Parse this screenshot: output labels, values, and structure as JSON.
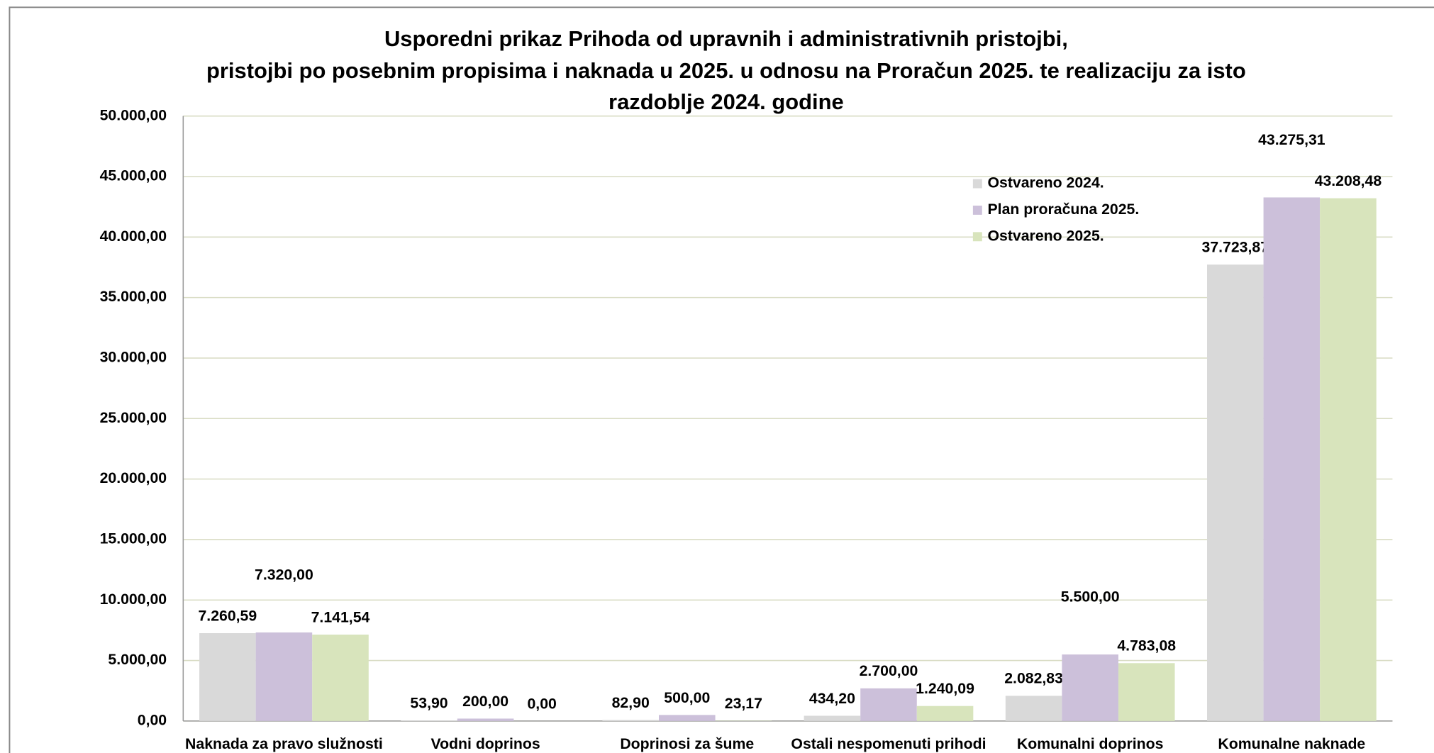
{
  "chart_data": {
    "type": "bar",
    "title": [
      "Usporedni prikaz Prihoda od upravnih i administrativnih pristojbi,",
      "pristojbi po posebnim propisima i naknada u 2025. u odnosu na Proračun 2025. te realizaciju za isto",
      "razdoblje 2024. godine"
    ],
    "categories": [
      "Naknada za pravo služnosti",
      "Vodni doprinos",
      "Doprinosi za šume",
      "Ostali nespomenuti prihodi",
      "Komunalni doprinos",
      "Komunalne naknade"
    ],
    "series": [
      {
        "name": "Ostvareno 2024.",
        "color": "#d9d9d9",
        "values": [
          7260.59,
          53.9,
          82.9,
          434.2,
          2082.83,
          37723.87
        ],
        "value_labels": [
          "7.260,59",
          "53,90",
          "82,90",
          "434,20",
          "2.082,83",
          "37.723,87"
        ]
      },
      {
        "name": "Plan proračuna 2025.",
        "color": "#ccc0da",
        "values": [
          7320.0,
          200.0,
          500.0,
          2700.0,
          5500.0,
          43275.31
        ],
        "value_labels": [
          "7.320,00",
          "200,00",
          "500,00",
          "2.700,00",
          "5.500,00",
          "43.275,31"
        ]
      },
      {
        "name": "Ostvareno 2025.",
        "color": "#d8e4bc",
        "values": [
          7141.54,
          0.0,
          23.17,
          1240.09,
          4783.08,
          43208.48
        ],
        "value_labels": [
          "7.141,54",
          "0,00",
          "23,17",
          "1.240,09",
          "4.783,08",
          "43.208,48"
        ]
      }
    ],
    "ylim": [
      0,
      50000
    ],
    "yticks": [
      {
        "value": 0,
        "label": "0,00"
      },
      {
        "value": 5000,
        "label": "5.000,00"
      },
      {
        "value": 10000,
        "label": "10.000,00"
      },
      {
        "value": 15000,
        "label": "15.000,00"
      },
      {
        "value": 20000,
        "label": "20.000,00"
      },
      {
        "value": 25000,
        "label": "25.000,00"
      },
      {
        "value": 30000,
        "label": "30.000,00"
      },
      {
        "value": 35000,
        "label": "35.000,00"
      },
      {
        "value": 40000,
        "label": "40.000,00"
      },
      {
        "value": 45000,
        "label": "45.000,00"
      },
      {
        "value": 50000,
        "label": "50.000,00"
      }
    ],
    "grid": true,
    "legend": "upper-right"
  }
}
